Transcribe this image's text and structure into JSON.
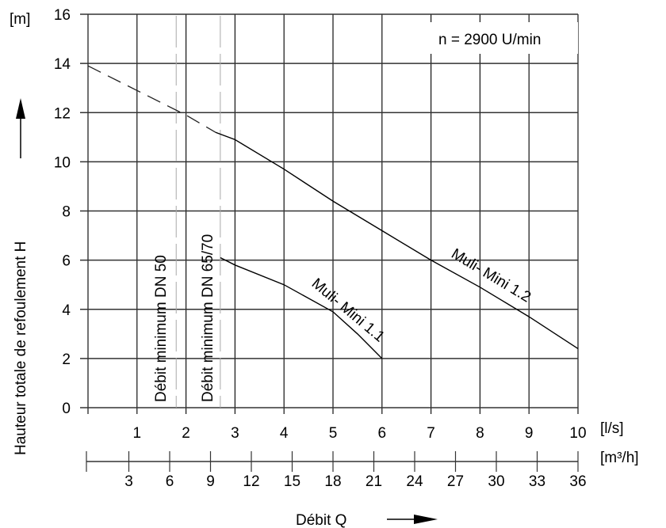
{
  "chart_data": {
    "type": "line",
    "title": "",
    "annotation_speed": "n = 2900 U/min",
    "ylabel": "Hauteur totale de refoulement  H",
    "yunit": "[m]",
    "xlabel": "Débit Q",
    "xunit": "[l/s]",
    "x2unit": "[m³/h]",
    "xlim": [
      0,
      10
    ],
    "ylim": [
      0,
      16
    ],
    "x2lim": [
      0,
      36
    ],
    "xticks": [
      1,
      2,
      3,
      4,
      5,
      6,
      7,
      8,
      9,
      10
    ],
    "yticks": [
      0,
      2,
      4,
      6,
      8,
      10,
      12,
      14,
      16
    ],
    "x2ticks": [
      3,
      6,
      9,
      12,
      15,
      18,
      21,
      24,
      27,
      30,
      33,
      36
    ],
    "grid": true,
    "series": [
      {
        "name": "Muli- Mini 1.2",
        "dashed_part": {
          "x": [
            0,
            1,
            2,
            2.6
          ],
          "y": [
            13.9,
            12.9,
            11.9,
            11.2
          ]
        },
        "x": [
          2.6,
          3,
          4,
          5,
          6,
          7,
          8,
          9,
          10
        ],
        "y": [
          11.2,
          10.9,
          9.7,
          8.4,
          7.2,
          6.0,
          4.9,
          3.7,
          2.4
        ]
      },
      {
        "name": "Muli- Mini 1.1",
        "x": [
          2.7,
          3,
          4,
          5,
          5.5,
          6
        ],
        "y": [
          6.1,
          5.8,
          5.0,
          3.9,
          3.0,
          2.0
        ]
      }
    ],
    "vertical_markers": [
      {
        "label": "Débit minimum DN 50",
        "x": 1.8
      },
      {
        "label": "Débit minimum DN 65/70",
        "x": 2.7
      }
    ]
  }
}
